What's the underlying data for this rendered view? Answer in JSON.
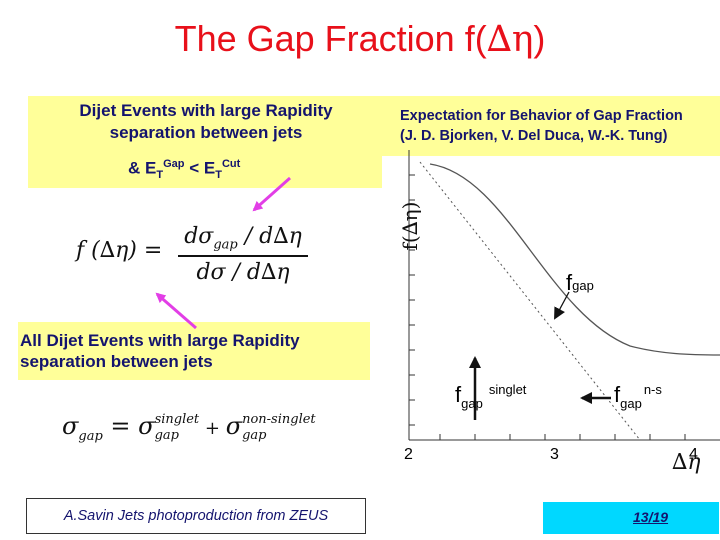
{
  "title": {
    "text": "The Gap Fraction f(",
    "delta": "∆η",
    "close": ")"
  },
  "box1": {
    "line1": "Dijet Events with large Rapidity",
    "line2": "separation between jets",
    "cond_pre": "& E",
    "cond_T1": "T",
    "cond_gap": "Gap",
    "cond_lt": " < E",
    "cond_T2": "T",
    "cond_cut": "Cut"
  },
  "expectation": {
    "line1": "Expectation for Behavior of Gap Fraction",
    "line2": "(J. D. Bjorken, V. Del Duca, W.-K. Tung)"
  },
  "box2": {
    "line1": "All Dijet Events with large Rapidity",
    "line2": "separation between jets"
  },
  "formula1": {
    "lhs": "f (∆η) =",
    "num": "dσ",
    "num_sub": "gap",
    "num_tail": " / d∆η",
    "den": "dσ / d∆η"
  },
  "formula2": {
    "lhs": "σ",
    "lhs_sub": "gap",
    "eq": " = ",
    "t1": "σ",
    "t1_sup": "singlet",
    "t1_sub": "gap",
    "plus": " + ",
    "t2": "σ",
    "t2_sup": "non-singlet",
    "t2_sub": "gap"
  },
  "plot": {
    "y_label": "f(∆η)",
    "x_label": "∆η",
    "ticks": [
      "2",
      "3",
      "4"
    ],
    "f_gap": {
      "f": "f",
      "sub": "gap"
    },
    "f_singlet": {
      "f": "f",
      "sub": "gap",
      "sup": "singlet"
    },
    "f_nonsinglet": {
      "f": "f",
      "sub": "gap",
      "sup": "n-s"
    }
  },
  "footer": {
    "left": "A.Savin Jets photoproduction from ZEUS",
    "page": "13/19"
  },
  "colors": {
    "title": "#e8101a",
    "text": "#14146e",
    "highlight": "#ffff99",
    "arrow": "#e23ee6",
    "footer_bg": "#00d8ff"
  }
}
